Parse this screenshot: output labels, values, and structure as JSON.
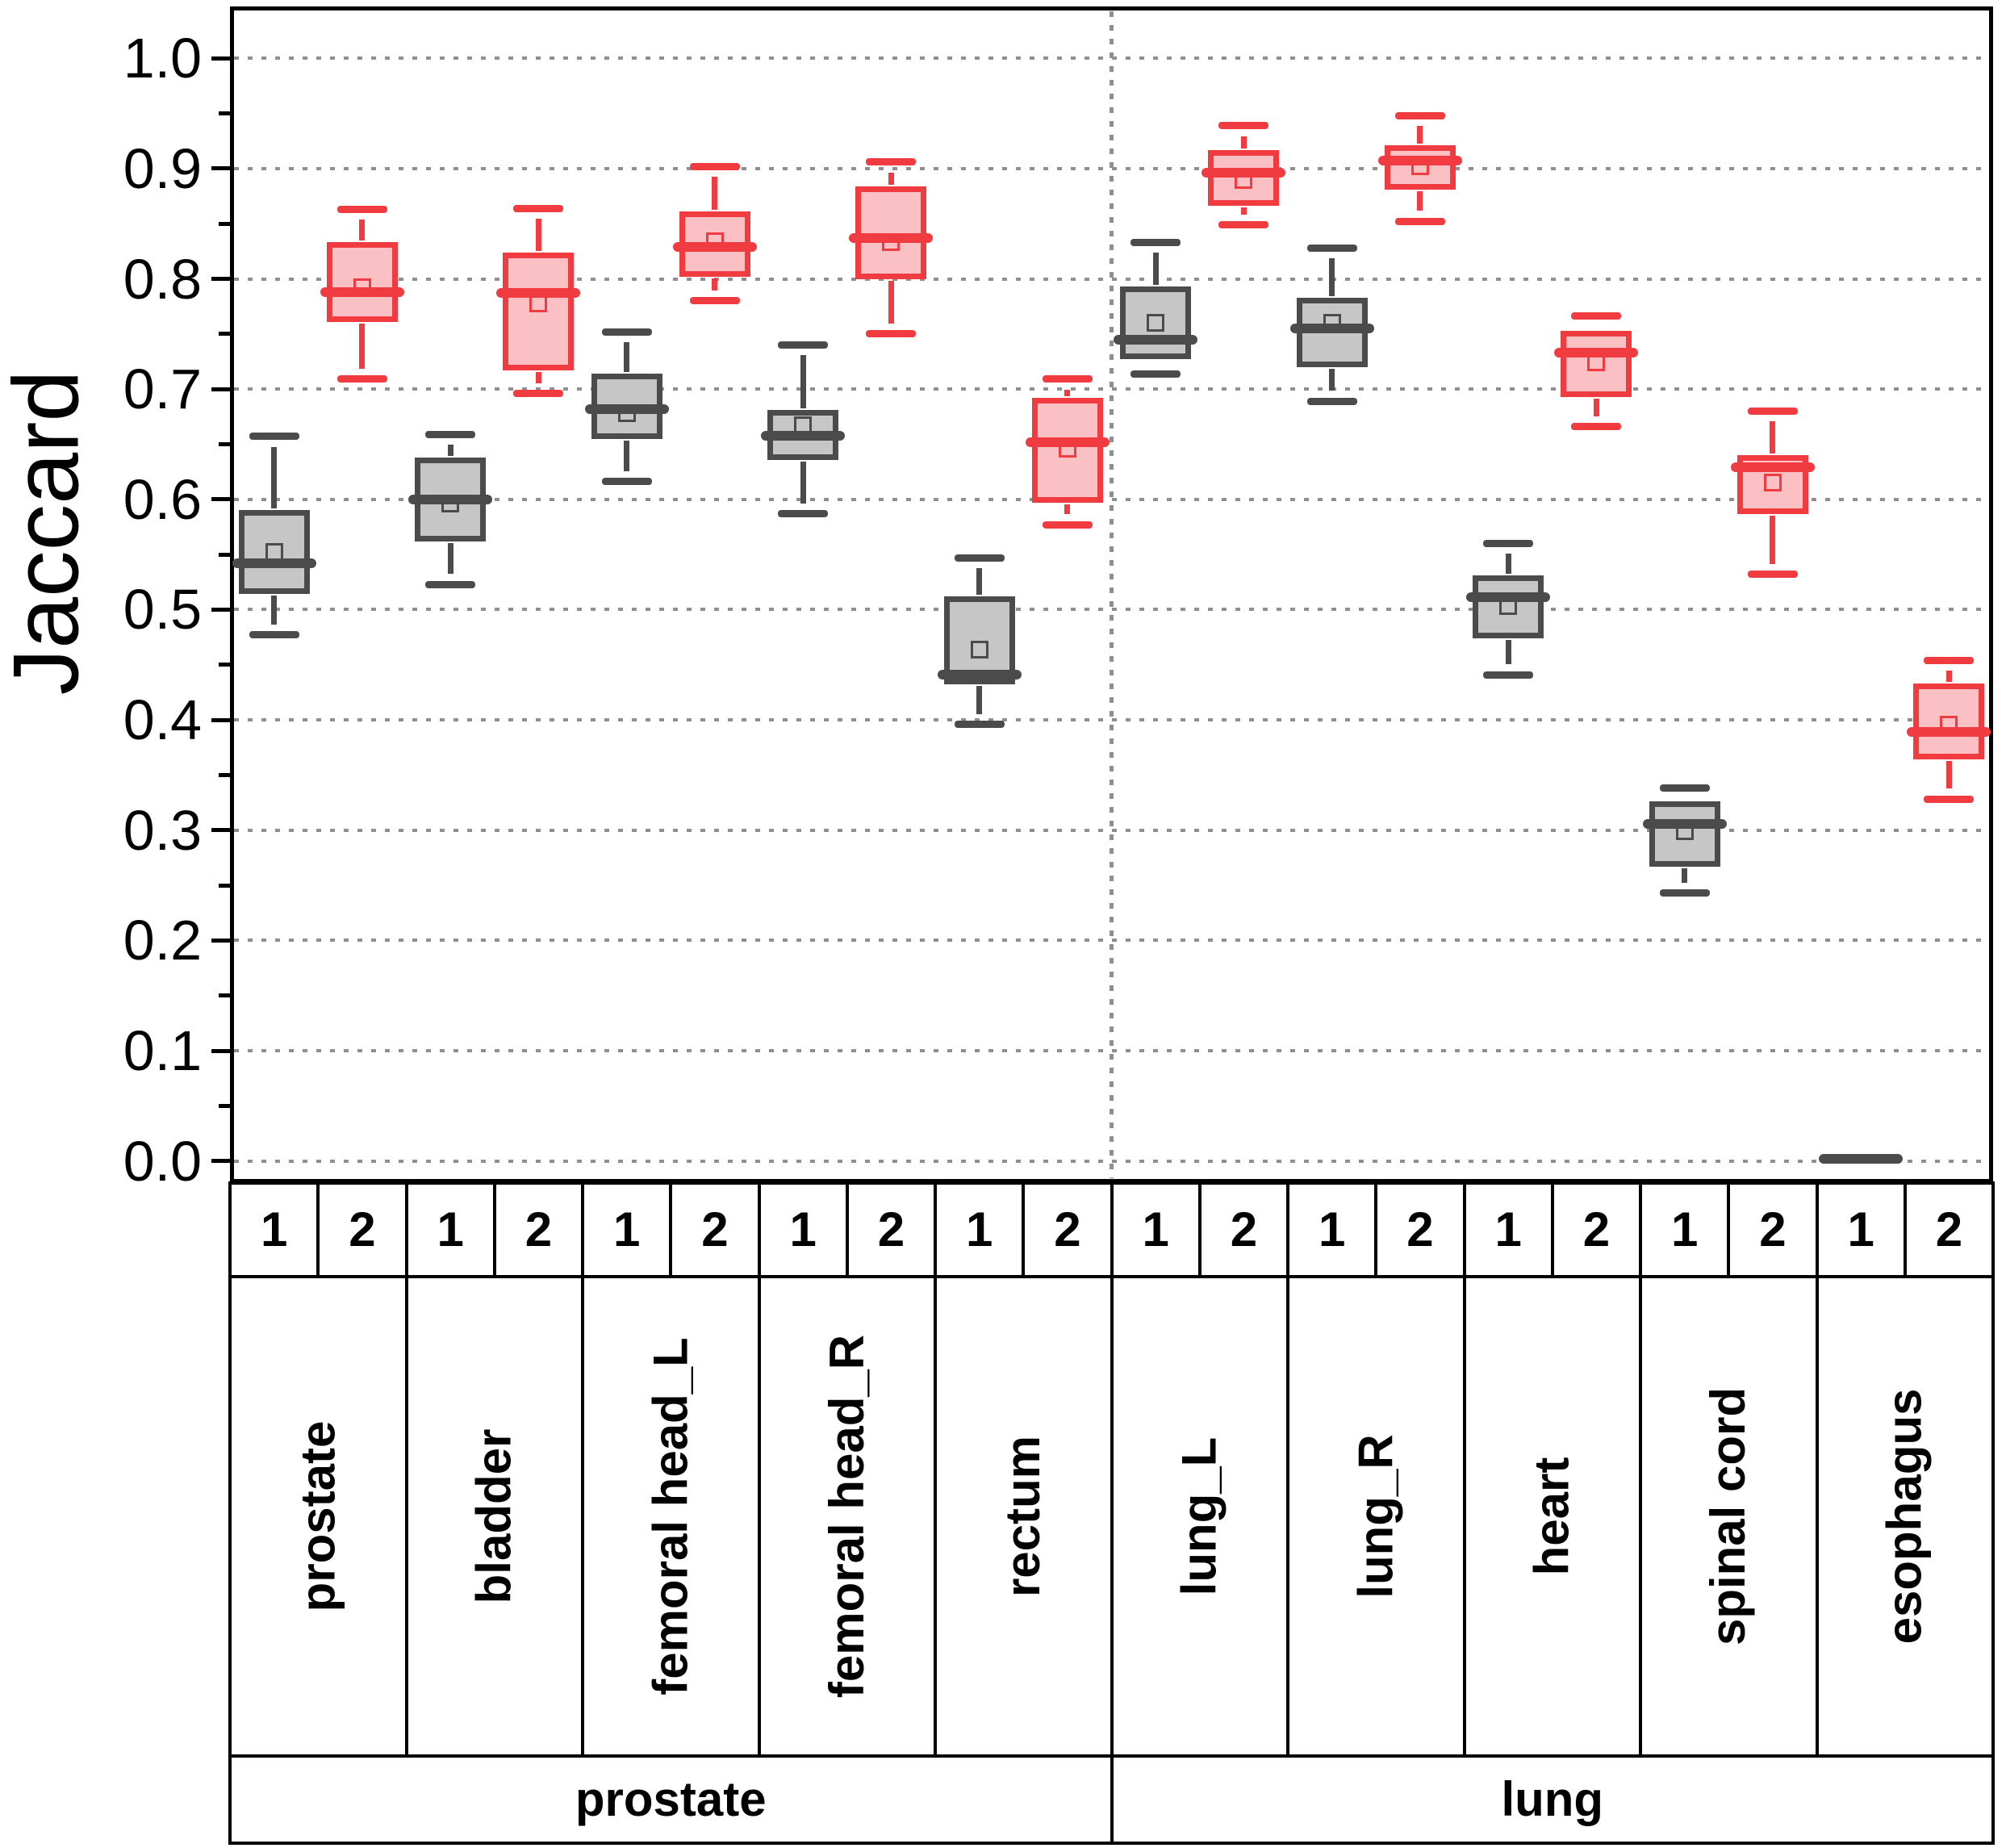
{
  "chart_data": {
    "type": "boxplot",
    "title": "",
    "ylabel": "Jaccard",
    "xlabel": "",
    "ylim": [
      -0.02,
      1.047
    ],
    "ytick_labels": [
      "0.0",
      "0.1",
      "0.2",
      "0.3",
      "0.4",
      "0.5",
      "0.6",
      "0.7",
      "0.8",
      "0.9",
      "1.0"
    ],
    "grid": "horizontal-dotted-at-0.1",
    "legend_position": "none",
    "method_labels": [
      "1",
      "2"
    ],
    "series": [
      {
        "name": "1",
        "stroke": "#4b4b4b",
        "fill": "#c6c6c6"
      },
      {
        "name": "2",
        "stroke": "#f03b41",
        "fill": "#fac0c3"
      }
    ],
    "groups": [
      {
        "label": "prostate",
        "organ_count": 5
      },
      {
        "label": "lung",
        "organ_count": 5
      }
    ],
    "organs": [
      {
        "name": "prostate",
        "group": "prostate",
        "method1": {
          "low": 0.477,
          "q1": 0.514,
          "median": 0.542,
          "q3": 0.59,
          "high": 0.657,
          "mean": 0.552
        },
        "method2": {
          "low": 0.709,
          "q1": 0.761,
          "median": 0.788,
          "q3": 0.833,
          "high": 0.863,
          "mean": 0.792
        }
      },
      {
        "name": "bladder",
        "group": "prostate",
        "method1": {
          "low": 0.523,
          "q1": 0.562,
          "median": 0.6,
          "q3": 0.638,
          "high": 0.659,
          "mean": 0.596
        },
        "method2": {
          "low": 0.696,
          "q1": 0.717,
          "median": 0.787,
          "q3": 0.824,
          "high": 0.864,
          "mean": 0.778
        }
      },
      {
        "name": "femoral head_L",
        "group": "prostate",
        "method1": {
          "low": 0.616,
          "q1": 0.655,
          "median": 0.682,
          "q3": 0.714,
          "high": 0.752,
          "mean": 0.678
        },
        "method2": {
          "low": 0.78,
          "q1": 0.802,
          "median": 0.829,
          "q3": 0.861,
          "high": 0.902,
          "mean": 0.834
        }
      },
      {
        "name": "femoral head_R",
        "group": "prostate",
        "method1": {
          "low": 0.587,
          "q1": 0.636,
          "median": 0.658,
          "q3": 0.681,
          "high": 0.74,
          "mean": 0.667
        },
        "method2": {
          "low": 0.75,
          "q1": 0.8,
          "median": 0.837,
          "q3": 0.884,
          "high": 0.906,
          "mean": 0.833
        }
      },
      {
        "name": "rectum",
        "group": "prostate",
        "method1": {
          "low": 0.396,
          "q1": 0.432,
          "median": 0.441,
          "q3": 0.512,
          "high": 0.547,
          "mean": 0.464
        },
        "method2": {
          "low": 0.577,
          "q1": 0.597,
          "median": 0.652,
          "q3": 0.692,
          "high": 0.709,
          "mean": 0.646
        }
      },
      {
        "name": "lung_L",
        "group": "lung",
        "method1": {
          "low": 0.714,
          "q1": 0.727,
          "median": 0.745,
          "q3": 0.793,
          "high": 0.833,
          "mean": 0.76
        },
        "method2": {
          "low": 0.849,
          "q1": 0.866,
          "median": 0.896,
          "q3": 0.917,
          "high": 0.939,
          "mean": 0.89
        }
      },
      {
        "name": "lung_R",
        "group": "lung",
        "method1": {
          "low": 0.689,
          "q1": 0.72,
          "median": 0.755,
          "q3": 0.783,
          "high": 0.828,
          "mean": 0.76
        },
        "method2": {
          "low": 0.852,
          "q1": 0.881,
          "median": 0.907,
          "q3": 0.921,
          "high": 0.948,
          "mean": 0.902
        }
      },
      {
        "name": "heart",
        "group": "lung",
        "method1": {
          "low": 0.441,
          "q1": 0.474,
          "median": 0.511,
          "q3": 0.531,
          "high": 0.56,
          "mean": 0.503
        },
        "method2": {
          "low": 0.666,
          "q1": 0.693,
          "median": 0.733,
          "q3": 0.753,
          "high": 0.766,
          "mean": 0.724
        }
      },
      {
        "name": "spinal cord",
        "group": "lung",
        "method1": {
          "low": 0.243,
          "q1": 0.267,
          "median": 0.306,
          "q3": 0.326,
          "high": 0.338,
          "mean": 0.299
        },
        "method2": {
          "low": 0.532,
          "q1": 0.587,
          "median": 0.629,
          "q3": 0.64,
          "high": 0.68,
          "mean": 0.615
        }
      },
      {
        "name": "esophagus",
        "group": "lung",
        "method1": {
          "low": 0.0,
          "q1": 0.0,
          "median": 0.002,
          "q3": 0.004,
          "high": 0.006,
          "mean": 0.002
        },
        "method2": {
          "low": 0.328,
          "q1": 0.364,
          "median": 0.389,
          "q3": 0.433,
          "high": 0.454,
          "mean": 0.396
        }
      }
    ]
  }
}
